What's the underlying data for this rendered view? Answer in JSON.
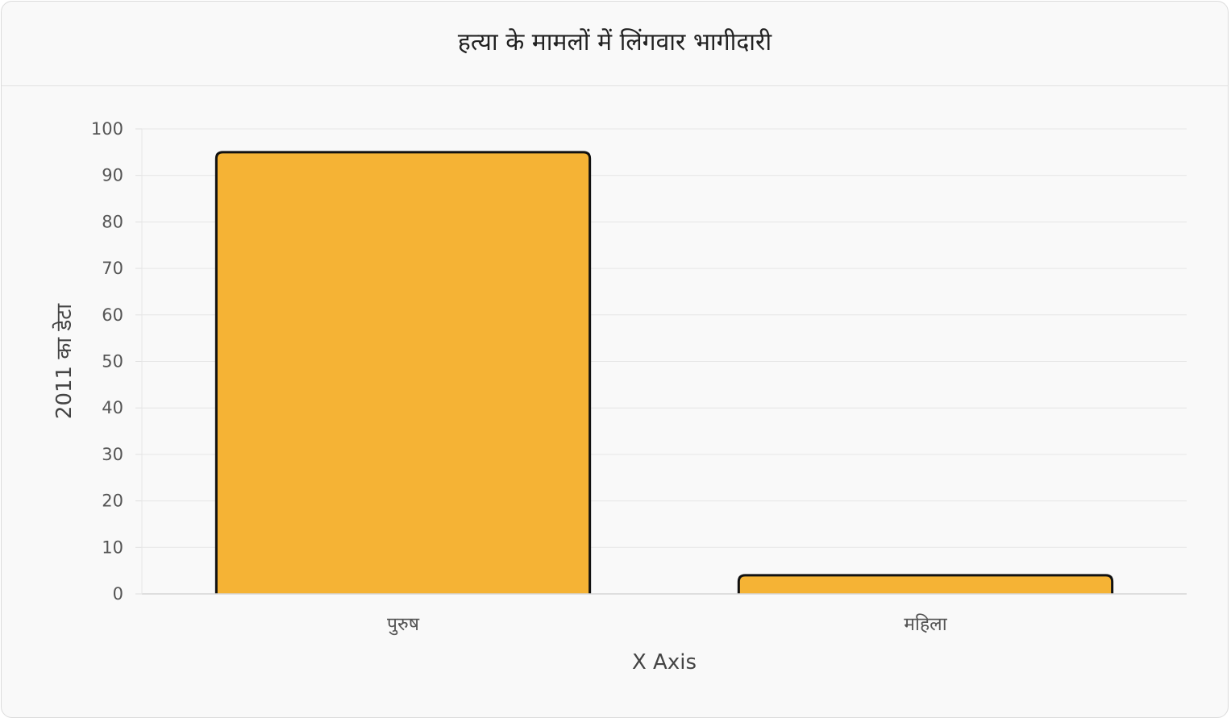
{
  "chart_data": {
    "type": "bar",
    "title": "हत्या के मामलों में लिंगवार भागीदारी",
    "categories": [
      "पुरुष",
      "महिला"
    ],
    "values": [
      95,
      4
    ],
    "xlabel": "X Axis",
    "ylabel": "2011 का डेटा",
    "ylim": [
      0,
      100
    ],
    "yticks": [
      0,
      10,
      20,
      30,
      40,
      50,
      60,
      70,
      80,
      90,
      100
    ],
    "grid": true,
    "bar_color": "#f5b335",
    "bar_border_color": "#111111"
  }
}
